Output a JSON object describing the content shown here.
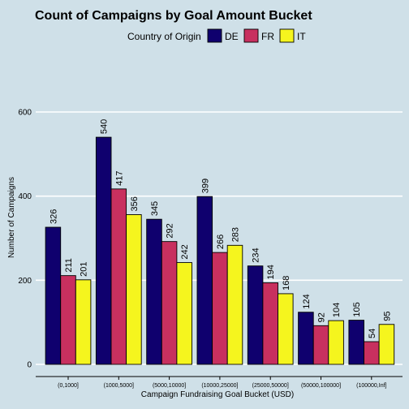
{
  "chart_data": {
    "type": "bar",
    "title": "Count of Campaigns by Goal Amount Bucket",
    "xlabel": "Campaign Fundraising Goal Bucket (USD)",
    "ylabel": "Number of Campaigns",
    "legend_title": "Country of Origin",
    "legend_position": "top",
    "ylim": [
      0,
      680
    ],
    "yticks": [
      0,
      200,
      400,
      600
    ],
    "grid": true,
    "categories": [
      "(0,1000]",
      "(1000,5000]",
      "(5000,10000]",
      "(10000,25000]",
      "(25000,50000]",
      "(50000,100000]",
      "(100000,Inf]"
    ],
    "series": [
      {
        "name": "DE",
        "color": "#0f006e",
        "values": [
          326,
          540,
          345,
          399,
          234,
          124,
          105
        ]
      },
      {
        "name": "FR",
        "color": "#c8305f",
        "values": [
          211,
          417,
          292,
          266,
          194,
          92,
          54
        ]
      },
      {
        "name": "IT",
        "color": "#f5f51e",
        "values": [
          201,
          356,
          242,
          283,
          168,
          104,
          95
        ]
      }
    ]
  }
}
